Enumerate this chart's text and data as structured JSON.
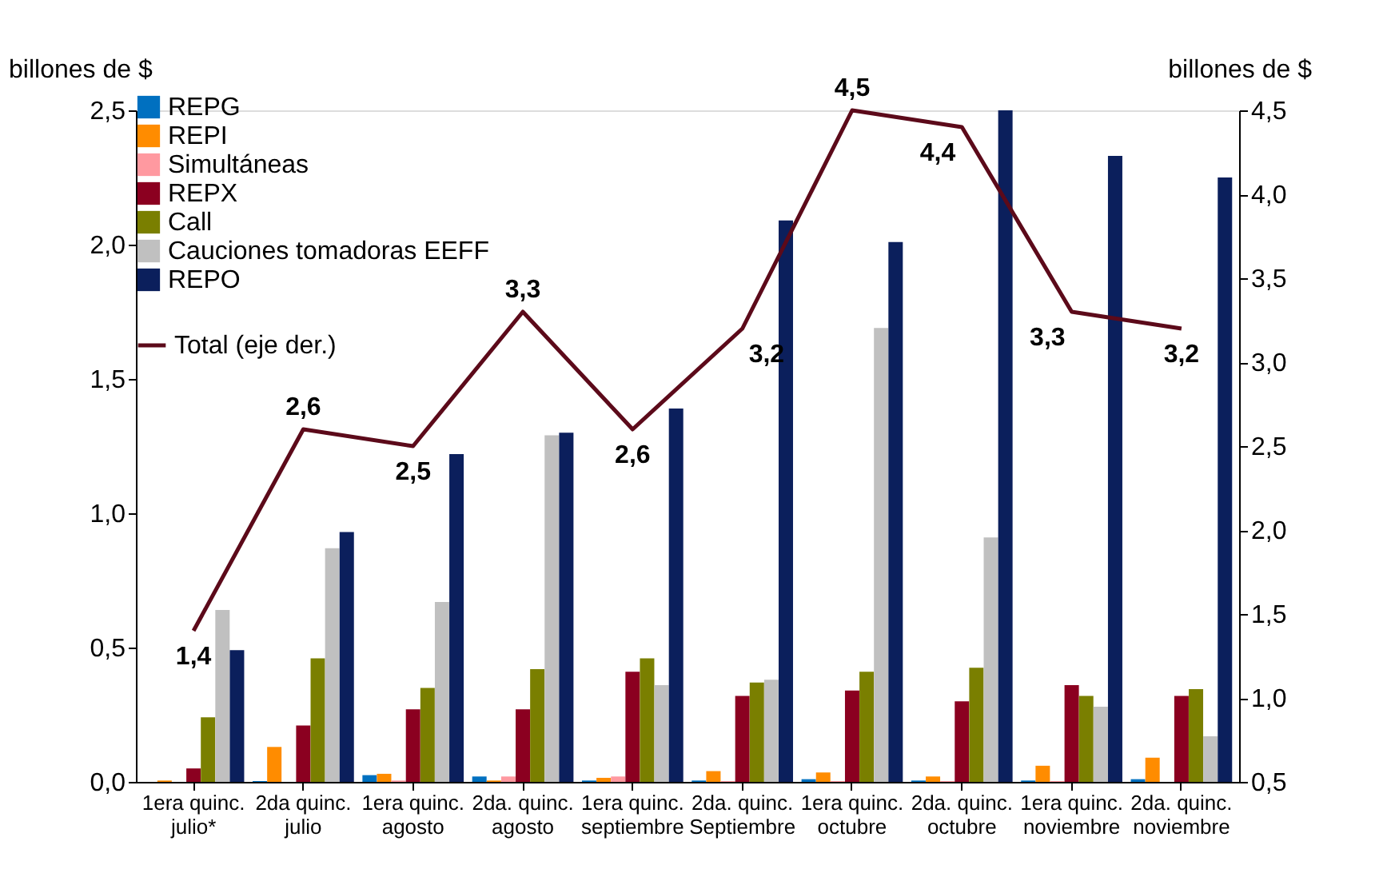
{
  "chart_data": {
    "type": "bar",
    "ylabel": "billones de $",
    "y2label": "billones de $",
    "categories": [
      "1era quinc.\njulio*",
      "2da quinc.\njulio",
      "1era quinc.\nagosto",
      "2da. quinc.\nagosto",
      "1era quinc.\nseptiembre",
      "2da. quinc.\nSeptiembre",
      "1era quinc.\noctubre",
      "2da. quinc.\noctubre",
      "1era quinc.\nnoviembre",
      "2da. quinc.\nnoviembre"
    ],
    "series": [
      {
        "name": "REPG",
        "color": "#0070c0",
        "values": [
          0,
          0.003,
          0.025,
          0.02,
          0.005,
          0.005,
          0.01,
          0.005,
          0.005,
          0.01
        ]
      },
      {
        "name": "REPI",
        "color": "#ff8c00",
        "values": [
          0.005,
          0.13,
          0.03,
          0.005,
          0.015,
          0.04,
          0.035,
          0.02,
          0.06,
          0.09
        ]
      },
      {
        "name": "Simultáneas",
        "color": "#ff99a0",
        "values": [
          0,
          0,
          0.005,
          0.02,
          0.02,
          0.003,
          0.003,
          0.003,
          0.003,
          0
        ]
      },
      {
        "name": "REPX",
        "color": "#8b0020",
        "values": [
          0.05,
          0.21,
          0.27,
          0.27,
          0.41,
          0.32,
          0.34,
          0.3,
          0.36,
          0.32
        ]
      },
      {
        "name": "Call",
        "color": "#7a7f00",
        "values": [
          0.24,
          0.46,
          0.35,
          0.42,
          0.46,
          0.37,
          0.41,
          0.425,
          0.32,
          0.345
        ]
      },
      {
        "name": "Cauciones tomadoras EEFF",
        "color": "#c0c0c0",
        "values": [
          0.64,
          0.87,
          0.67,
          1.29,
          0.36,
          0.38,
          1.69,
          0.91,
          0.28,
          0.17
        ]
      },
      {
        "name": "REPO",
        "color": "#0b1f5c",
        "values": [
          0.49,
          0.93,
          1.22,
          1.3,
          1.39,
          2.09,
          2.01,
          2.5,
          2.33,
          2.25
        ]
      },
      {
        "name": "Total (eje der.)",
        "color": "#5c0a1a",
        "type": "line",
        "axis": "y2",
        "line_style": "solid",
        "values": [
          1.4,
          2.6,
          2.5,
          3.3,
          2.6,
          3.2,
          4.5,
          4.4,
          3.3,
          3.2
        ],
        "value_labels": [
          "1,4",
          "2,6",
          "2,5",
          "3,3",
          "2,6",
          "3,2",
          "4,5",
          "4,4",
          "3,3",
          "3,2"
        ]
      }
    ],
    "ylim": [
      0,
      2.5
    ],
    "yticks": [
      {
        "value": 0,
        "label": "0,0"
      },
      {
        "value": 0.5,
        "label": "0,5"
      },
      {
        "value": 1,
        "label": "1,0"
      },
      {
        "value": 1.5,
        "label": "1,5"
      },
      {
        "value": 2,
        "label": "2,0"
      },
      {
        "value": 2.5,
        "label": "2,5"
      }
    ],
    "y2lim": [
      0.5,
      4.5
    ],
    "y2ticks": [
      {
        "value": 0.5,
        "label": "0,5"
      },
      {
        "value": 1,
        "label": "1,0"
      },
      {
        "value": 1.5,
        "label": "1,5"
      },
      {
        "value": 2,
        "label": "2,0"
      },
      {
        "value": 2.5,
        "label": "2,5"
      },
      {
        "value": 3,
        "label": "3,0"
      },
      {
        "value": 3.5,
        "label": "3,5"
      },
      {
        "value": 4,
        "label": "4,0"
      },
      {
        "value": 4.5,
        "label": "4,5"
      }
    ],
    "legend": "top left",
    "grid": false,
    "marker": "none"
  }
}
